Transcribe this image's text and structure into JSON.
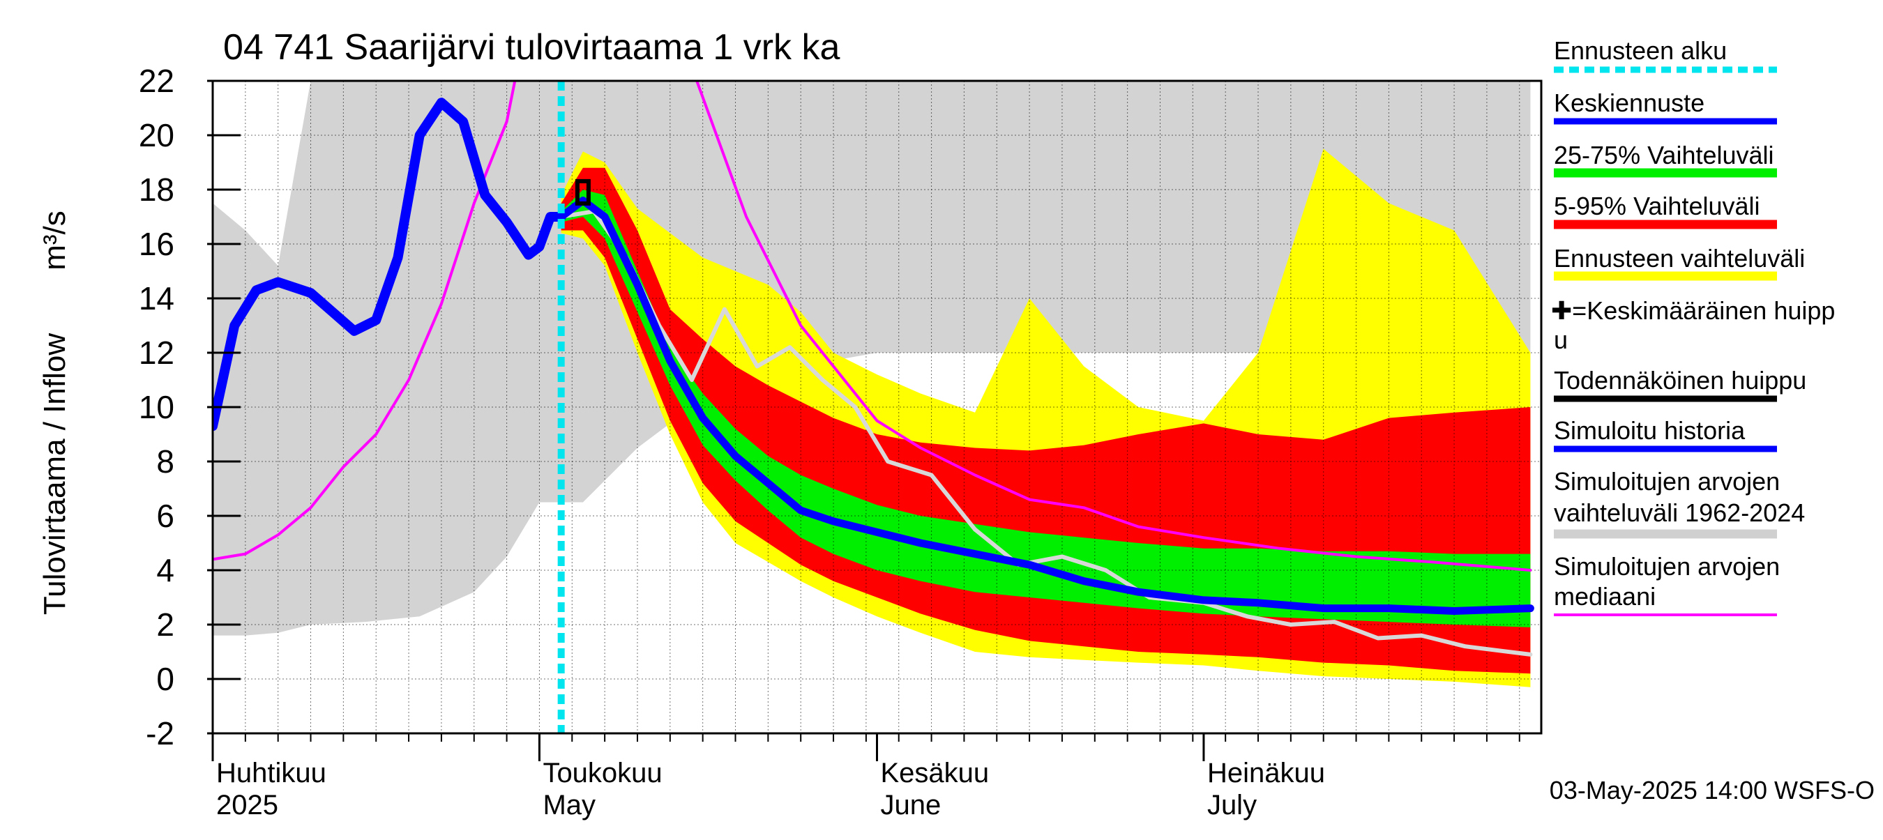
{
  "chart_data": {
    "type": "area",
    "title": "04 741 Saarijärvi tulovirtaama 1 vrk ka",
    "ylabel": "Tulovirtaama / Inflow",
    "yunit": "m³/s",
    "ylim": [
      -2,
      22
    ],
    "yticks": [
      -2,
      0,
      2,
      4,
      6,
      8,
      10,
      12,
      14,
      16,
      18,
      20,
      22
    ],
    "xlim": [
      "2025-04-01",
      "2025-07-31"
    ],
    "grid": true,
    "month_labels": [
      {
        "date": "2025-04-01",
        "fi": "Huhtikuu",
        "en": "2025"
      },
      {
        "date": "2025-05-01",
        "fi": "Toukokuu",
        "en": "May"
      },
      {
        "date": "2025-06-01",
        "fi": "Kesäkuu",
        "en": "June"
      },
      {
        "date": "2025-07-01",
        "fi": "Heinäkuu",
        "en": "July"
      }
    ],
    "forecast_start": "2025-05-03",
    "footer": "03-May-2025 14:00 WSFS-O",
    "legend_position": "right",
    "legend": [
      {
        "label": "Ennusteen alku",
        "color": "#00e5ee",
        "style": "dotted"
      },
      {
        "label": "Keskiennuste",
        "color": "#0000ff",
        "style": "line"
      },
      {
        "label": "25-75% Vaihteluväli",
        "color": "#00ee00",
        "style": "band"
      },
      {
        "label": "5-95% Vaihteluväli",
        "color": "#ff0000",
        "style": "band"
      },
      {
        "label": "Ennusteen vaihteluväli",
        "color": "#ffff00",
        "style": "band"
      },
      {
        "label": "✚=Keskimääräinen huippu",
        "color": "#000000",
        "style": "marker"
      },
      {
        "label": "Todennäköinen huippu",
        "color": "#000000",
        "style": "line"
      },
      {
        "label": "Simuloitu historia",
        "color": "#0000ff",
        "style": "line"
      },
      {
        "label": "Simuloitujen arvojen vaihteluväli 1962-2024",
        "color": "#d0d0d0",
        "style": "band"
      },
      {
        "label": "Simuloitujen arvojen mediaani",
        "color": "#ff00ff",
        "style": "line"
      }
    ],
    "series": {
      "hist_range": {
        "dates": [
          "2025-04-01",
          "2025-04-04",
          "2025-04-07",
          "2025-04-10",
          "2025-04-15",
          "2025-04-20",
          "2025-04-25",
          "2025-04-28",
          "2025-05-01",
          "2025-05-05",
          "2025-05-10",
          "2025-05-15",
          "2025-05-20",
          "2025-05-25",
          "2025-06-01",
          "2025-06-08",
          "2025-06-15",
          "2025-06-22",
          "2025-07-01",
          "2025-07-08",
          "2025-07-15",
          "2025-07-22",
          "2025-07-31"
        ],
        "upper": [
          17.5,
          16.5,
          15.2,
          22,
          22,
          22,
          22,
          22,
          22,
          22,
          22,
          22,
          22,
          22,
          22,
          22,
          22,
          22,
          22,
          22,
          22,
          22,
          22
        ],
        "lower": [
          1.6,
          1.6,
          1.7,
          2.0,
          2.1,
          2.3,
          3.2,
          4.5,
          6.5,
          6.5,
          8.5,
          10.0,
          11.0,
          11.5,
          12.0,
          12.0,
          12.0,
          12.0,
          12.0,
          12.0,
          12.0,
          12.0,
          12.0
        ]
      },
      "hist_median": {
        "dates": [
          "2025-04-01",
          "2025-04-04",
          "2025-04-07",
          "2025-04-10",
          "2025-04-13",
          "2025-04-16",
          "2025-04-19",
          "2025-04-22",
          "2025-04-25",
          "2025-04-28",
          "2025-04-29",
          "2025-05-15",
          "2025-05-20",
          "2025-05-25",
          "2025-06-01",
          "2025-06-05",
          "2025-06-10",
          "2025-06-15",
          "2025-06-20",
          "2025-06-25",
          "2025-07-01",
          "2025-07-08",
          "2025-07-15",
          "2025-07-22",
          "2025-07-31"
        ],
        "values": [
          4.4,
          4.6,
          5.3,
          6.3,
          7.8,
          9.0,
          11.0,
          13.8,
          17.5,
          20.5,
          22.5,
          22.5,
          17.0,
          13.0,
          9.5,
          8.5,
          7.5,
          6.6,
          6.3,
          5.6,
          5.2,
          4.8,
          4.5,
          4.3,
          4.0
        ]
      },
      "sim_history": {
        "dates": [
          "2025-04-01",
          "2025-04-03",
          "2025-04-05",
          "2025-04-07",
          "2025-04-10",
          "2025-04-12",
          "2025-04-14",
          "2025-04-16",
          "2025-04-18",
          "2025-04-20",
          "2025-04-22",
          "2025-04-24",
          "2025-04-26",
          "2025-04-28",
          "2025-04-30",
          "2025-05-01",
          "2025-05-02",
          "2025-05-03"
        ],
        "values": [
          9.3,
          13.0,
          14.3,
          14.6,
          14.2,
          13.5,
          12.8,
          13.2,
          15.5,
          20.0,
          21.2,
          20.5,
          17.8,
          16.8,
          15.6,
          15.9,
          17.0,
          17.0
        ]
      },
      "forecast": {
        "dates": [
          "2025-05-03",
          "2025-05-05",
          "2025-05-07",
          "2025-05-10",
          "2025-05-13",
          "2025-05-16",
          "2025-05-19",
          "2025-05-22",
          "2025-05-25",
          "2025-05-28",
          "2025-06-01",
          "2025-06-05",
          "2025-06-10",
          "2025-06-15",
          "2025-06-20",
          "2025-06-25",
          "2025-07-01",
          "2025-07-06",
          "2025-07-12",
          "2025-07-18",
          "2025-07-24",
          "2025-07-31"
        ],
        "p95": [
          17.5,
          18.8,
          18.8,
          16.5,
          13.6,
          12.5,
          11.5,
          10.8,
          10.2,
          9.6,
          9.0,
          8.7,
          8.5,
          8.4,
          8.6,
          9.0,
          9.4,
          9.0,
          8.8,
          9.6,
          9.8,
          10.0
        ],
        "p75": [
          17.2,
          18.0,
          17.8,
          15.0,
          12.2,
          10.5,
          9.2,
          8.2,
          7.5,
          7.0,
          6.4,
          6.0,
          5.7,
          5.4,
          5.2,
          5.0,
          4.8,
          4.8,
          4.7,
          4.7,
          4.6,
          4.6
        ],
        "median": [
          17.0,
          17.6,
          17.0,
          14.5,
          11.7,
          9.6,
          8.2,
          7.2,
          6.2,
          5.8,
          5.4,
          5.0,
          4.6,
          4.2,
          3.6,
          3.2,
          2.9,
          2.8,
          2.6,
          2.6,
          2.5,
          2.6
        ],
        "p25": [
          16.8,
          17.0,
          16.2,
          13.5,
          10.8,
          8.6,
          7.3,
          6.2,
          5.2,
          4.6,
          4.0,
          3.6,
          3.2,
          3.0,
          2.8,
          2.6,
          2.4,
          2.3,
          2.2,
          2.1,
          2.0,
          1.9
        ],
        "p5": [
          16.5,
          16.5,
          15.5,
          12.5,
          9.5,
          7.2,
          5.8,
          5.0,
          4.2,
          3.6,
          3.0,
          2.4,
          1.8,
          1.4,
          1.2,
          1.0,
          0.9,
          0.8,
          0.6,
          0.5,
          0.3,
          0.2
        ],
        "max": [
          17.8,
          19.4,
          19.0,
          17.3,
          16.4,
          15.5,
          15.0,
          14.5,
          13.5,
          12.0,
          11.2,
          10.5,
          9.8,
          14.0,
          11.5,
          10.0,
          9.5,
          12.0,
          19.5,
          17.5,
          16.5,
          12.0
        ],
        "min": [
          16.4,
          16.2,
          15.2,
          12.0,
          9.0,
          6.5,
          5.0,
          4.3,
          3.6,
          3.0,
          2.3,
          1.7,
          1.0,
          0.8,
          0.7,
          0.6,
          0.5,
          0.3,
          0.1,
          0.0,
          -0.1,
          -0.3
        ]
      },
      "sample_sim": {
        "dates": [
          "2025-05-03",
          "2025-05-06",
          "2025-05-09",
          "2025-05-12",
          "2025-05-15",
          "2025-05-18",
          "2025-05-21",
          "2025-05-24",
          "2025-05-27",
          "2025-05-30",
          "2025-06-02",
          "2025-06-06",
          "2025-06-10",
          "2025-06-14",
          "2025-06-18",
          "2025-06-22",
          "2025-06-26",
          "2025-07-01",
          "2025-07-05",
          "2025-07-09",
          "2025-07-13",
          "2025-07-17",
          "2025-07-21",
          "2025-07-25",
          "2025-07-31"
        ],
        "values": [
          17.0,
          17.2,
          15.5,
          13.0,
          11.0,
          13.6,
          11.5,
          12.2,
          11.0,
          10.0,
          8.0,
          7.5,
          5.5,
          4.2,
          4.5,
          4.0,
          3.0,
          2.8,
          2.3,
          2.0,
          2.1,
          1.5,
          1.6,
          1.2,
          0.9
        ]
      }
    },
    "peak_marker": {
      "date": "2025-05-05",
      "value": 17.9
    }
  }
}
